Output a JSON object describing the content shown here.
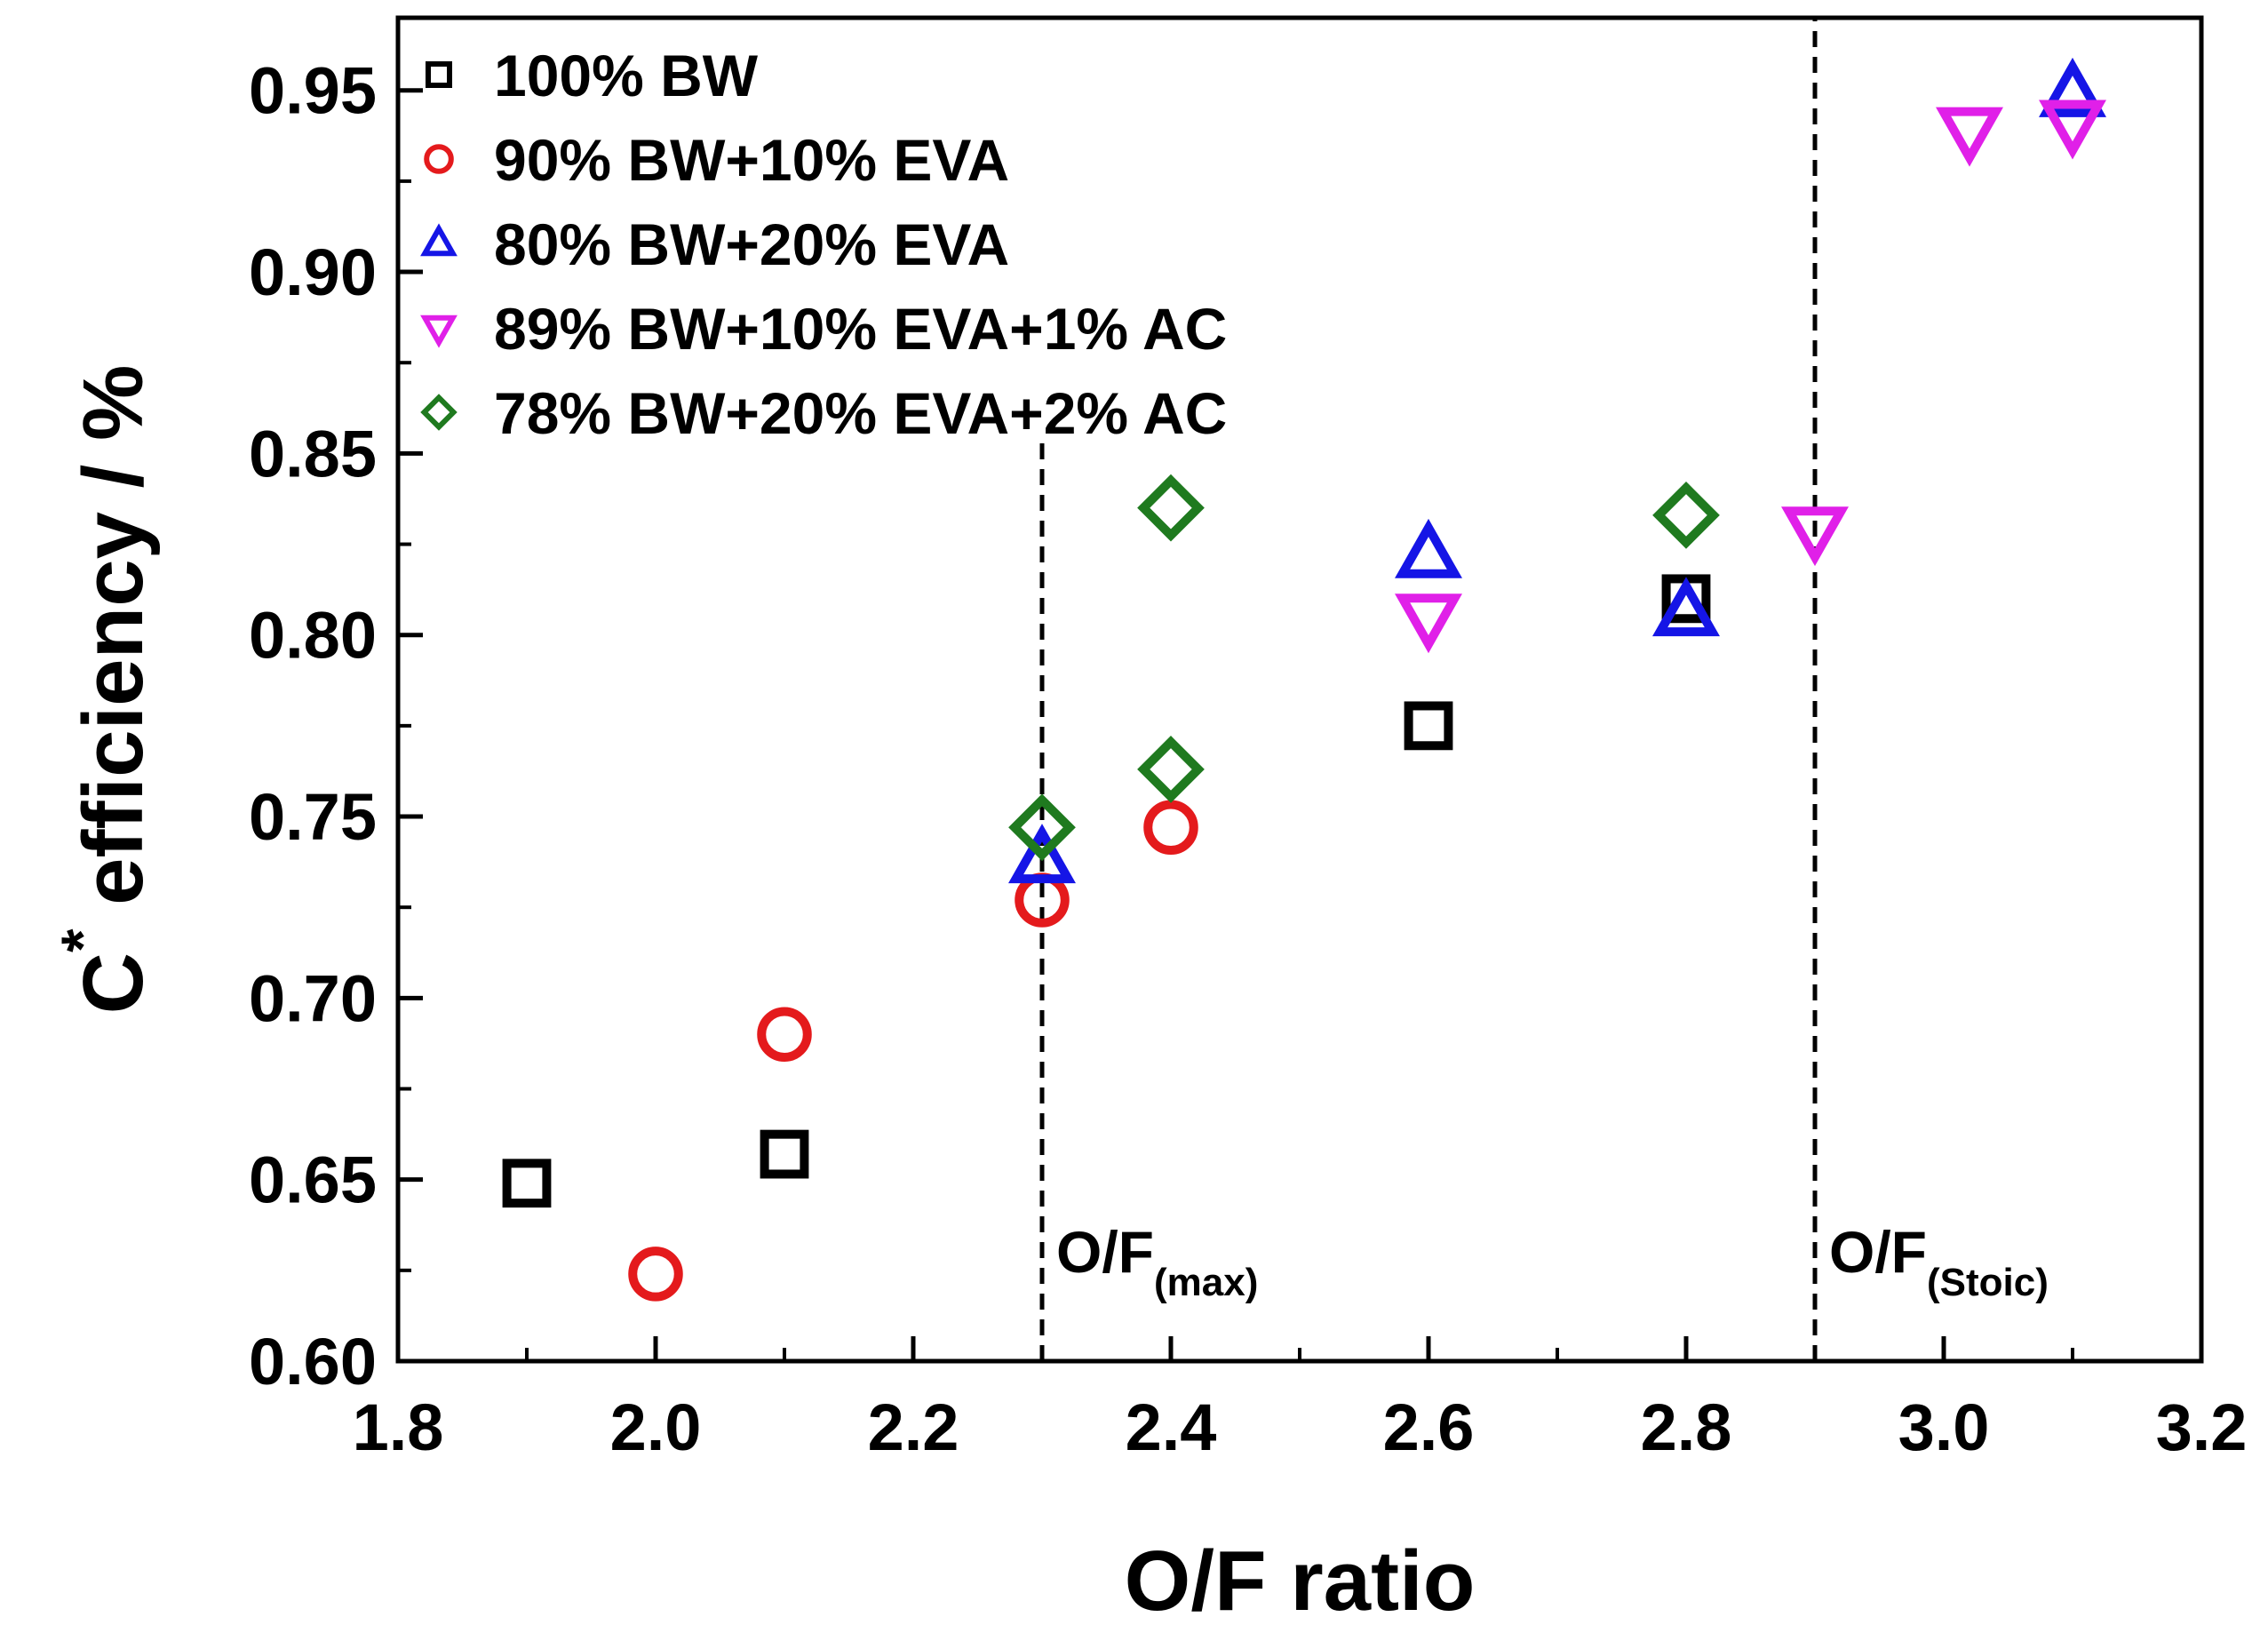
{
  "chart_data": {
    "type": "scatter",
    "title": "",
    "xlabel": "O/F ratio",
    "ylabel": {
      "main": "C",
      "superscript": "*",
      "rest": " efficiency / %"
    },
    "xlim": [
      1.8,
      3.2
    ],
    "ylim": [
      0.6,
      0.97
    ],
    "xticks": [
      1.8,
      2.0,
      2.2,
      2.4,
      2.6,
      2.8,
      3.0,
      3.2
    ],
    "xtick_labels": [
      "1.8",
      "2.0",
      "2.2",
      "2.4",
      "2.6",
      "2.8",
      "3.0",
      "3.2"
    ],
    "yticks": [
      0.6,
      0.65,
      0.7,
      0.75,
      0.8,
      0.85,
      0.9,
      0.95
    ],
    "ytick_labels": [
      "0.60",
      "0.65",
      "0.70",
      "0.75",
      "0.80",
      "0.85",
      "0.90",
      "0.95"
    ],
    "grid": false,
    "legend_position": "top-left",
    "series": [
      {
        "name": "100% BW",
        "marker": "square",
        "color": "#000000",
        "x": [
          1.9,
          2.1,
          2.6,
          2.8
        ],
        "y": [
          0.649,
          0.657,
          0.775,
          0.81
        ]
      },
      {
        "name": "90% BW+10% EVA",
        "marker": "circle",
        "color": "#e41a1c",
        "x": [
          2.0,
          2.1,
          2.3,
          2.4
        ],
        "y": [
          0.624,
          0.69,
          0.727,
          0.747
        ]
      },
      {
        "name": "80% BW+20% EVA",
        "marker": "triangle-up",
        "color": "#1515e6",
        "x": [
          2.3,
          2.6,
          2.8,
          3.1
        ],
        "y": [
          0.738,
          0.822,
          0.806,
          0.949
        ]
      },
      {
        "name": "89% BW+10% EVA+1% AC",
        "marker": "triangle-down",
        "color": "#e020e8",
        "x": [
          2.6,
          2.9,
          3.02,
          3.1
        ],
        "y": [
          0.805,
          0.829,
          0.939,
          0.941
        ]
      },
      {
        "name": "78% BW+20% EVA+2% AC",
        "marker": "diamond",
        "color": "#1f7a1f",
        "x": [
          2.3,
          2.4,
          2.4,
          2.8
        ],
        "y": [
          0.747,
          0.763,
          0.835,
          0.833
        ]
      }
    ],
    "vlines": [
      {
        "x": 2.3,
        "y_from": 0.6,
        "y_to": 0.854,
        "label": "O/F",
        "label_sub": "(max)"
      },
      {
        "x": 2.9,
        "y_from": 0.6,
        "y_to": 0.97,
        "label": "O/F",
        "label_sub": "(Stoic)"
      }
    ]
  }
}
